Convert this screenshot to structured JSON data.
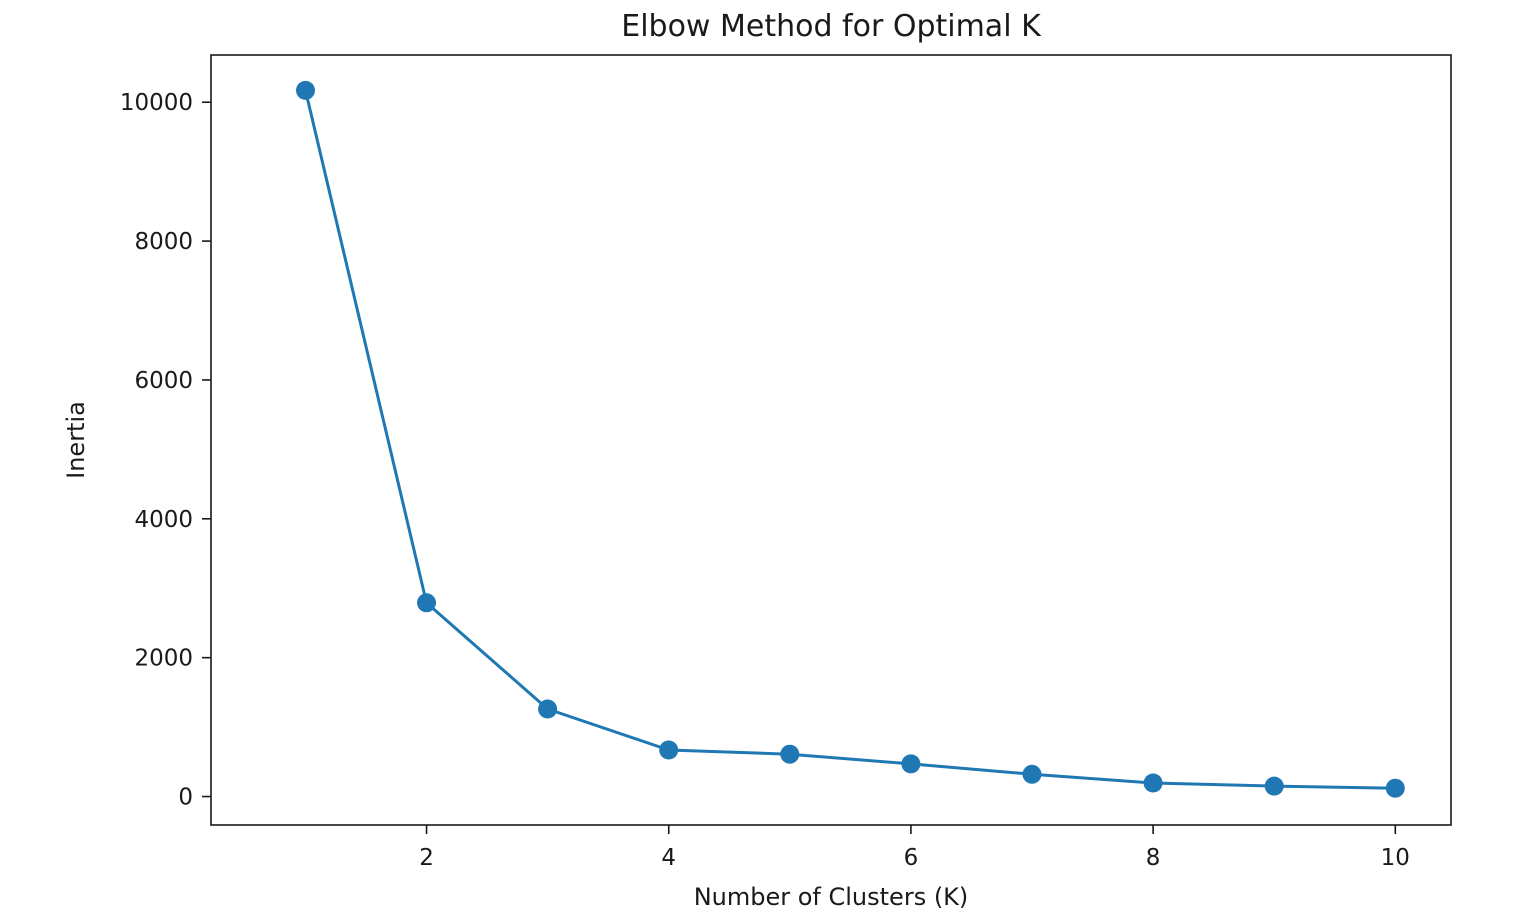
{
  "chart_data": {
    "type": "line",
    "title": "Elbow Method for Optimal K",
    "xlabel": "Number of Clusters (K)",
    "ylabel": "Inertia",
    "x": [
      1,
      2,
      3,
      4,
      5,
      6,
      7,
      8,
      9,
      10
    ],
    "series": [
      {
        "values": [
          10170,
          2790,
          1260,
          670,
          610,
          470,
          320,
          195,
          150,
          120
        ],
        "color": "#1f77b4",
        "marker": "circle"
      }
    ],
    "xlim": [
      0.22,
      10.46
    ],
    "ylim": [
      -410,
      10680
    ],
    "xticks": [
      2,
      4,
      6,
      8,
      10
    ],
    "yticks": [
      0,
      2000,
      4000,
      6000,
      8000,
      10000
    ],
    "xtick_labels": [
      "2",
      "4",
      "6",
      "8",
      "10"
    ],
    "ytick_labels": [
      "0",
      "2000",
      "4000",
      "6000",
      "8000",
      "10000"
    ],
    "grid": false,
    "legend": "none"
  }
}
